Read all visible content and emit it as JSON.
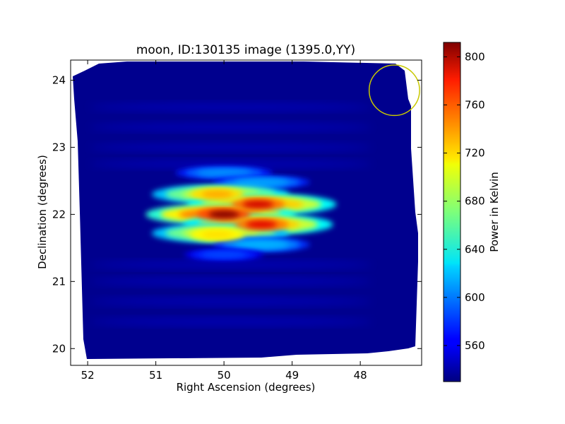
{
  "chart_data": {
    "type": "heatmap",
    "title": "moon, ID:130135 image (1395.0,YY)",
    "xlabel": "Right Ascension (degrees)",
    "ylabel": "Declination (degrees)",
    "xlim": [
      52.25,
      47.1
    ],
    "ylim": [
      19.75,
      24.3
    ],
    "x_axis_reversed": true,
    "x_ticks": [
      52,
      51,
      50,
      49,
      48
    ],
    "y_ticks": [
      20,
      21,
      22,
      23,
      24
    ],
    "colormap": "jet",
    "colorbar": {
      "label": "Power in Kelvin",
      "range": [
        530,
        812
      ],
      "ticks": [
        560,
        600,
        640,
        680,
        720,
        760,
        800
      ]
    },
    "background_level": 535,
    "peaks": [
      {
        "ra": 50.0,
        "dec": 22.0,
        "value": 812
      },
      {
        "ra": 49.5,
        "dec": 22.15,
        "value": 790
      },
      {
        "ra": 49.45,
        "dec": 21.85,
        "value": 785
      },
      {
        "ra": 50.1,
        "dec": 22.3,
        "value": 730
      },
      {
        "ra": 50.1,
        "dec": 21.7,
        "value": 715
      }
    ],
    "circle_annotation": {
      "ra": 47.5,
      "dec": 23.85,
      "radius_deg": 0.37,
      "color": "#c8c800"
    },
    "grid": false
  }
}
